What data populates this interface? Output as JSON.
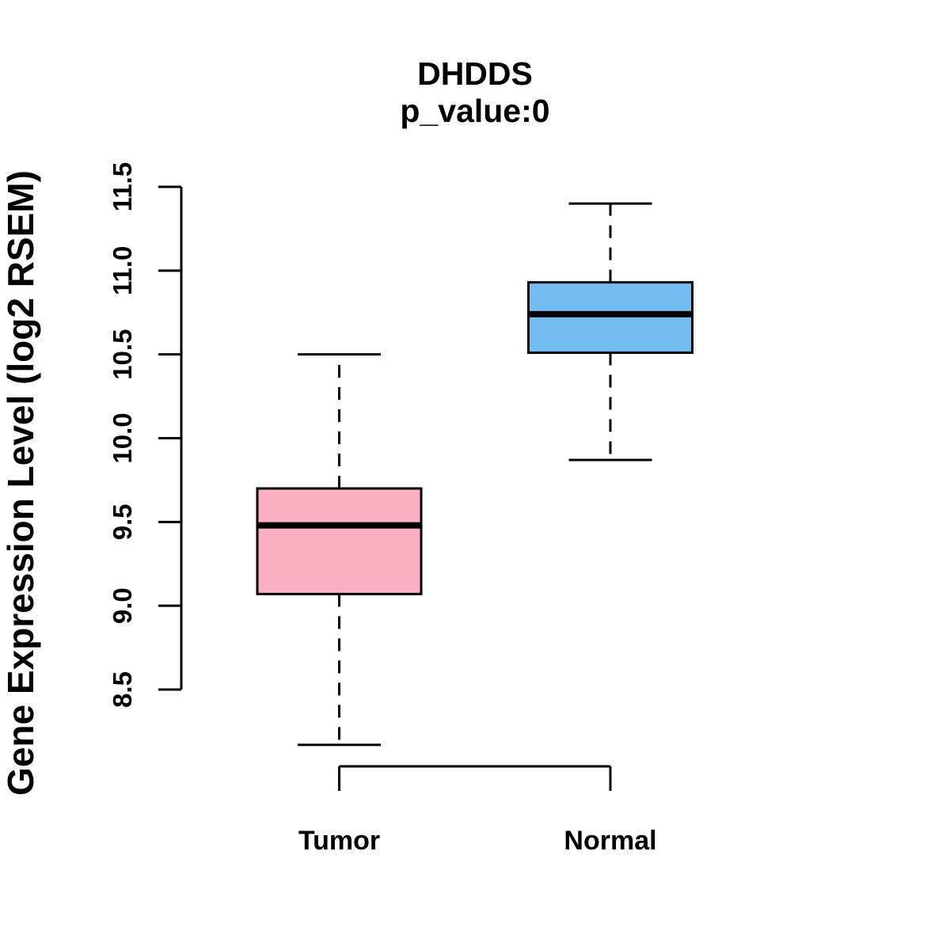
{
  "chart_data": {
    "type": "boxplot",
    "title": "DHDDS",
    "subtitle": "p_value:0",
    "ylabel": "Gene Expression Level (log2 RSEM)",
    "xlabel": "",
    "categories": [
      "Tumor",
      "Normal"
    ],
    "yticks": [
      "8.5",
      "9.0",
      "9.5",
      "10.0",
      "10.5",
      "11.0",
      "11.5"
    ],
    "ylim": [
      8.5,
      11.5
    ],
    "grid": false,
    "legend": "none",
    "series": [
      {
        "name": "Tumor",
        "color": "#FDB0C1",
        "border_color": "#000000",
        "whisker_low": 8.17,
        "q1": 9.07,
        "median": 9.48,
        "q3": 9.7,
        "whisker_high": 10.5
      },
      {
        "name": "Normal",
        "color": "#74BDF2",
        "border_color": "#000000",
        "whisker_low": 9.87,
        "q1": 10.51,
        "median": 10.74,
        "q3": 10.93,
        "whisker_high": 11.4
      }
    ]
  }
}
